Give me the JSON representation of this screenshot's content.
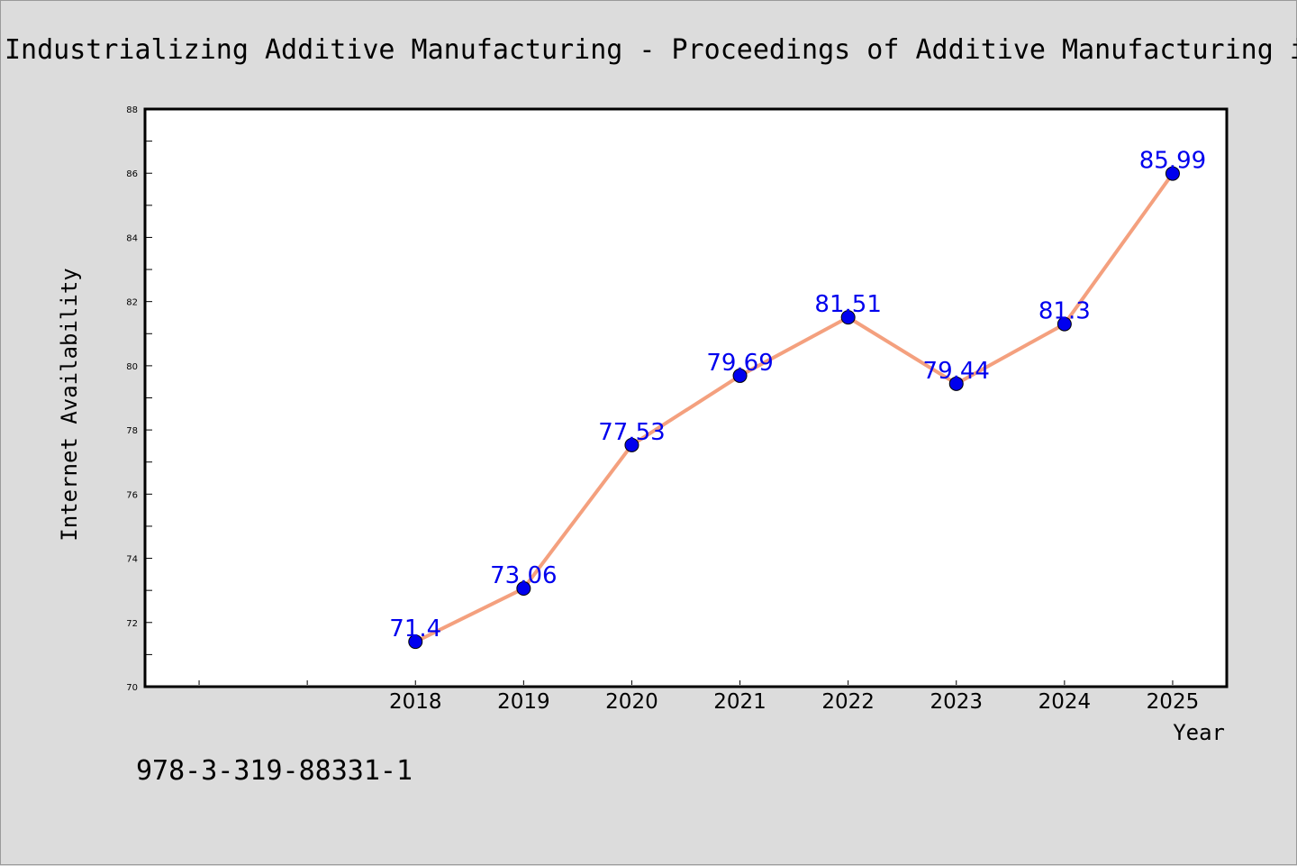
{
  "chart_data": {
    "type": "line",
    "title": "Industrializing Additive Manufacturing - Proceedings of Additive Manufacturing i",
    "xlabel": "Year",
    "ylabel": "Internet Availability",
    "categories": [
      "2018",
      "2019",
      "2020",
      "2021",
      "2022",
      "2023",
      "2024",
      "2025"
    ],
    "values": [
      71.4,
      73.06,
      77.53,
      79.69,
      81.51,
      79.44,
      81.3,
      85.99
    ],
    "data_labels": [
      "71.4",
      "73.06",
      "77.53",
      "79.69",
      "81.51",
      "79.44",
      "81.3",
      "85.99"
    ],
    "ylim": [
      70,
      88
    ],
    "yticks": [
      "70",
      "72",
      "74",
      "76",
      "78",
      "80",
      "82",
      "84",
      "86",
      "88"
    ],
    "grid": false,
    "legend": "none",
    "line_color": "#f4a07e",
    "marker_color": "#0000ee",
    "label_color": "#0000ee"
  },
  "footer": {
    "isbn": "978-3-319-88331-1"
  }
}
